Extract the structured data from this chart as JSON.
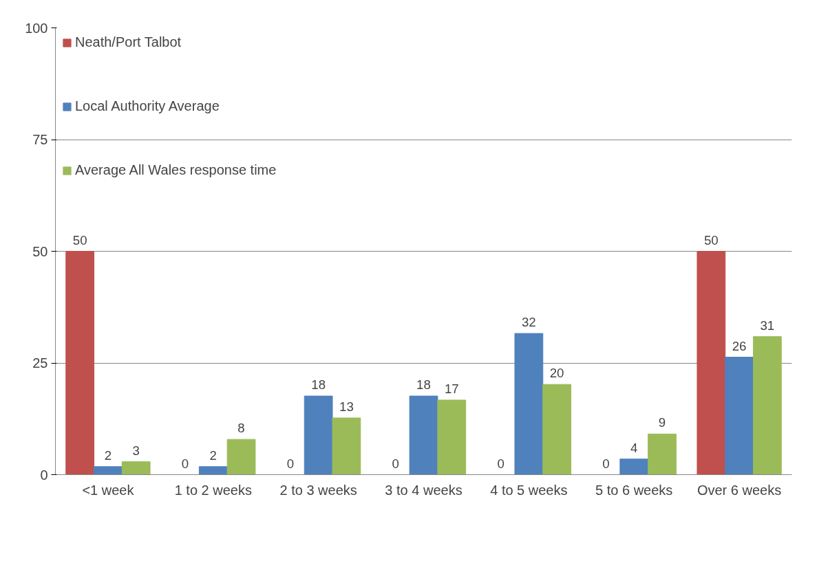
{
  "chart_data": {
    "type": "bar",
    "categories": [
      "<1 week",
      "1 to 2 weeks",
      "2 to 3 weeks",
      "3 to 4 weeks",
      "4 to 5 weeks",
      "5 to 6 weeks",
      "Over 6 weeks"
    ],
    "series": [
      {
        "name": "Neath/Port Talbot",
        "color": "#c0504d",
        "values": [
          50,
          0,
          0,
          0,
          0,
          0,
          50
        ],
        "value_labels": [
          "50",
          "0",
          "0",
          "0",
          "0",
          "0",
          "50"
        ]
      },
      {
        "name": "Local Authority Average",
        "color": "#4f81bd",
        "values": [
          1.8,
          1.8,
          17.6,
          17.6,
          31.6,
          3.5,
          26.3
        ],
        "value_labels": [
          "2",
          "2",
          "18",
          "18",
          "32",
          "4",
          "26"
        ]
      },
      {
        "name": "Average All Wales response time",
        "color": "#9bbb59",
        "values": [
          2.9,
          7.9,
          12.7,
          16.7,
          20.2,
          9.1,
          30.9
        ],
        "value_labels": [
          "3",
          "8",
          "13",
          "17",
          "20",
          "9",
          "31"
        ]
      }
    ],
    "ylim": [
      0,
      100
    ],
    "yticks": [
      0,
      25,
      50,
      75,
      100
    ],
    "grid": "y",
    "legend": "top left"
  }
}
